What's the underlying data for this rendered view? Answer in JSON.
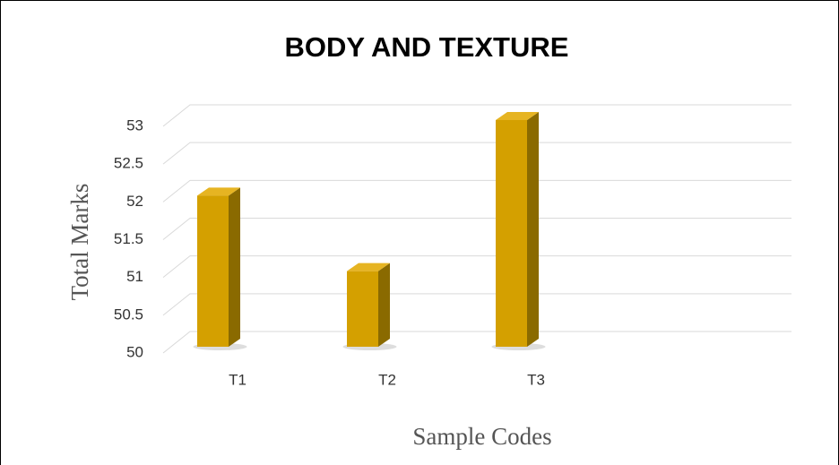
{
  "chart_data": {
    "type": "bar",
    "title": "BODY AND TEXTURE",
    "x_label": "Sample Codes",
    "y_label": "Total Marks",
    "categories": [
      "T1",
      "T2",
      "T3"
    ],
    "values": [
      52,
      51,
      53
    ],
    "color": "#d4a000",
    "ylim": [
      50,
      53
    ],
    "yticks": [
      50,
      50.5,
      51,
      51.5,
      52,
      52.5,
      53
    ],
    "grid": true
  }
}
